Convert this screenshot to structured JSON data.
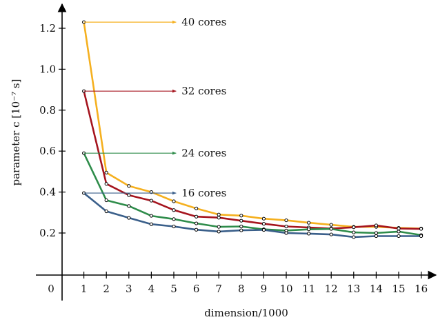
{
  "chart_data": {
    "type": "line",
    "xlabel": "dimension/1000",
    "ylabel": "parameter c [10⁻⁷ s]",
    "x": [
      1,
      2,
      3,
      4,
      5,
      6,
      7,
      8,
      9,
      10,
      11,
      12,
      13,
      14,
      15,
      16
    ],
    "x_ticks": [
      "0",
      "1",
      "2",
      "3",
      "4",
      "5",
      "6",
      "7",
      "8",
      "9",
      "10",
      "11",
      "12",
      "13",
      "14",
      "15",
      "16"
    ],
    "y_ticks": [
      "0.2",
      "0.4",
      "0.6",
      "0.8",
      "1.0",
      "1.2"
    ],
    "y_tick_values": [
      0.2,
      0.4,
      0.6,
      0.8,
      1.0,
      1.2
    ],
    "xlim": [
      0,
      16.8
    ],
    "ylim": [
      -0.013,
      1.31
    ],
    "grid": false,
    "series": [
      {
        "name": "40 cores",
        "color": "#f5b01f",
        "values": [
          1.23,
          0.495,
          0.43,
          0.4,
          0.355,
          0.32,
          0.29,
          0.285,
          0.27,
          0.262,
          0.25,
          0.24,
          0.23,
          0.23,
          0.225,
          0.222
        ]
      },
      {
        "name": "32 cores",
        "color": "#a5141e",
        "values": [
          0.893,
          0.44,
          0.385,
          0.358,
          0.312,
          0.28,
          0.275,
          0.26,
          0.245,
          0.232,
          0.227,
          0.222,
          0.228,
          0.237,
          0.222,
          0.22
        ]
      },
      {
        "name": "24 cores",
        "color": "#2e8c4a",
        "values": [
          0.59,
          0.36,
          0.332,
          0.284,
          0.268,
          0.247,
          0.23,
          0.232,
          0.218,
          0.212,
          0.218,
          0.22,
          0.203,
          0.2,
          0.207,
          0.19
        ]
      },
      {
        "name": "16 cores",
        "color": "#3a5f8a",
        "values": [
          0.395,
          0.306,
          0.274,
          0.243,
          0.232,
          0.216,
          0.207,
          0.213,
          0.215,
          0.2,
          0.197,
          0.193,
          0.18,
          0.185,
          0.185,
          0.185
        ]
      }
    ],
    "annotations": [
      {
        "text": "40 cores",
        "series": 0,
        "arrow_from_x": 1,
        "arrow_to_x": 5.1
      },
      {
        "text": "32 cores",
        "series": 1,
        "arrow_from_x": 1,
        "arrow_to_x": 5.1
      },
      {
        "text": "24 cores",
        "series": 2,
        "arrow_from_x": 1,
        "arrow_to_x": 5.1
      },
      {
        "text": "16 cores",
        "series": 3,
        "arrow_from_x": 1,
        "arrow_to_x": 5.1
      }
    ]
  }
}
